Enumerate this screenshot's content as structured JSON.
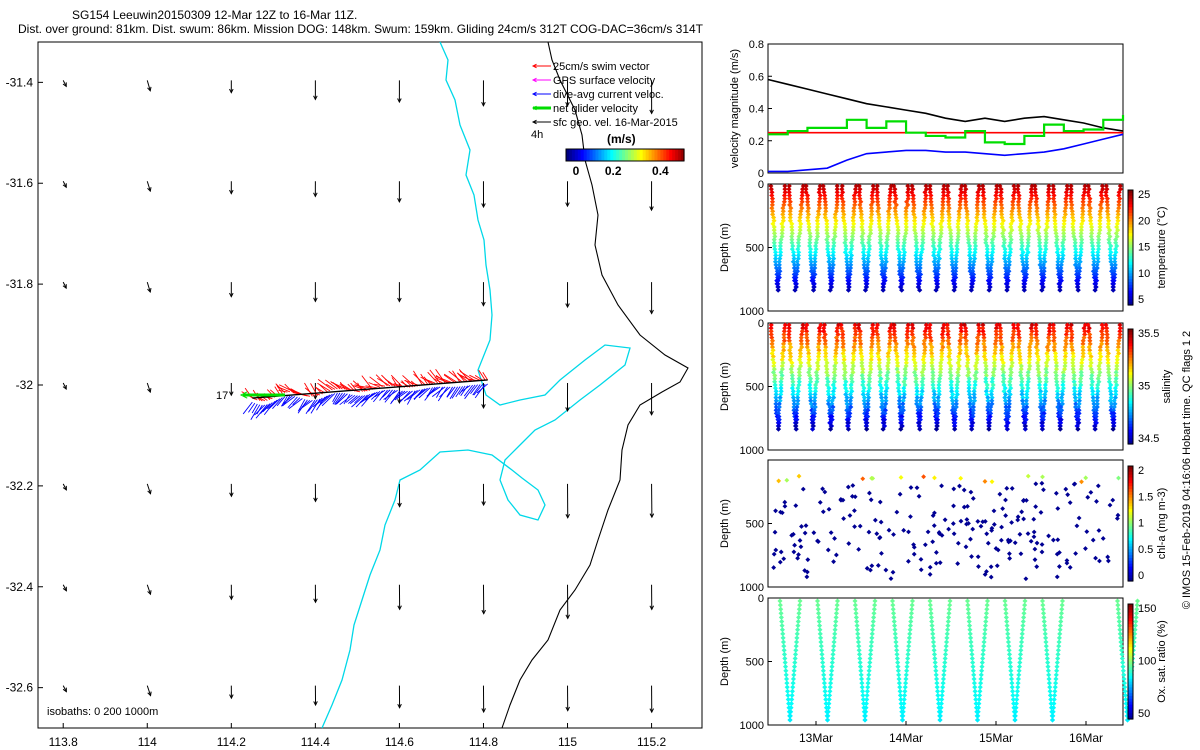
{
  "header": {
    "title": "SG154 Leeuwin20150309 12-Mar 12Z to 16-Mar 11Z.",
    "subtitle": "Dist. over ground: 81km. Dist. swum: 86km. Mission DOG: 148km. Swum: 159km. Gliding 24cm/s 312T COG-DAC=36cm/s 314T"
  },
  "credit": "© IMOS 15-Feb-2019 04:16:06 Hobart time. QC flags 1  2",
  "chart_data": [
    {
      "type": "map",
      "x_ticks": [
        113.8,
        114,
        114.2,
        114.4,
        114.6,
        114.8,
        115,
        115.2
      ],
      "y_ticks": [
        -31.4,
        -31.6,
        -31.8,
        -32,
        -32.2,
        -32.4,
        -32.6
      ],
      "xlim": [
        113.74,
        115.32
      ],
      "ylim": [
        -32.68,
        -31.32
      ],
      "legend": {
        "position": "top-right",
        "entries": [
          {
            "label": "25cm/s swim vector",
            "color": "#ff0000"
          },
          {
            "label": "GPS surface velocity",
            "color": "#ff00ff"
          },
          {
            "label": "dive-avg current veloc.",
            "color": "#0000ff"
          },
          {
            "label": "net glider velocity",
            "color": "#00dd00"
          },
          {
            "label": "sfc geo. vel. 16-Mar-2015",
            "color": "#000000"
          }
        ]
      },
      "colorbar": {
        "label": "(m/s)",
        "ticks": [
          "0",
          "0.2",
          "0.4"
        ],
        "range": [
          0,
          0.5
        ],
        "side_label": "4h"
      },
      "isobaths_label": "isobaths: 0   200  1000m",
      "track_label": "17",
      "track": {
        "start_lon": 114.25,
        "start_lat": -32.02,
        "end_lon": 114.81,
        "end_lat": -31.99
      },
      "geo_vectors": {
        "lon": [
          113.8,
          114,
          114.2,
          114.4,
          114.6,
          114.8,
          115,
          115.2
        ],
        "lat": [
          -31.4,
          -31.6,
          -31.8,
          -32,
          -32.2,
          -32.4,
          -32.6
        ]
      }
    },
    {
      "type": "line",
      "ylabel": "velocity magnitude (m/s)",
      "ylim": [
        0,
        0.8
      ],
      "y_ticks": [
        "0",
        "0.2",
        "0.4",
        "0.6",
        "0.8"
      ],
      "series": [
        {
          "color": "#000000",
          "values": [
            0.58,
            0.55,
            0.52,
            0.49,
            0.46,
            0.43,
            0.41,
            0.39,
            0.37,
            0.34,
            0.32,
            0.34,
            0.32,
            0.34,
            0.35,
            0.33,
            0.31,
            0.28,
            0.26
          ]
        },
        {
          "color": "#ff0000",
          "values": [
            0.25,
            0.25,
            0.25,
            0.25,
            0.25,
            0.25,
            0.25,
            0.25,
            0.25,
            0.25,
            0.25,
            0.25,
            0.25,
            0.25,
            0.25,
            0.25,
            0.25,
            0.25,
            0.25
          ]
        },
        {
          "color": "#0000ff",
          "values": [
            0.01,
            0.01,
            0.02,
            0.03,
            0.08,
            0.12,
            0.13,
            0.14,
            0.14,
            0.13,
            0.13,
            0.12,
            0.11,
            0.12,
            0.13,
            0.15,
            0.18,
            0.21,
            0.24
          ]
        },
        {
          "color": "#00dd00",
          "values": [
            0.24,
            0.26,
            0.28,
            0.28,
            0.33,
            0.28,
            0.32,
            0.25,
            0.23,
            0.22,
            0.26,
            0.19,
            0.18,
            0.23,
            0.3,
            0.26,
            0.27,
            0.33,
            0.36
          ]
        }
      ]
    },
    {
      "type": "scatter",
      "ylabel": "Depth (m)",
      "y_ticks": [
        "0",
        "500",
        "1000"
      ],
      "colorbar_label": "temperature (°C)",
      "colorbar_ticks": [
        "25",
        "20",
        "15",
        "10",
        "5"
      ],
      "colormap": "jet",
      "profiles": 20,
      "max_depth_fraction": 0.82
    },
    {
      "type": "scatter",
      "ylabel": "Depth (m)",
      "y_ticks": [
        "0",
        "500",
        "1000"
      ],
      "colorbar_label": "salinity",
      "colorbar_ticks": [
        "35.5",
        "35",
        "34.5"
      ],
      "colormap": "jet",
      "profiles": 20,
      "max_depth_fraction": 0.82
    },
    {
      "type": "scatter",
      "ylabel": "Depth (m)",
      "y_ticks": [
        "500",
        "1000"
      ],
      "colorbar_label": "chl-a (mg m-3)",
      "colorbar_ticks": [
        "2",
        "1.5",
        "1",
        "0.5",
        "0"
      ],
      "colormap": "jet",
      "max_depth_fraction": 0.92
    },
    {
      "type": "scatter",
      "ylabel": "Depth (m)",
      "y_ticks": [
        "0",
        "500",
        "1000"
      ],
      "colorbar_label": "Ox. sat. ratio (%)",
      "colorbar_ticks": [
        "150",
        "100",
        "50"
      ],
      "colormap": "jet",
      "x_ticks": [
        "13Mar",
        "14Mar",
        "15Mar",
        "16Mar"
      ],
      "profiles": 9
    }
  ],
  "colors": {
    "cyan_isobath": "#00d8e8",
    "track_red": "#ff0000",
    "track_blue": "#0000ff",
    "net_green": "#00dd00"
  }
}
